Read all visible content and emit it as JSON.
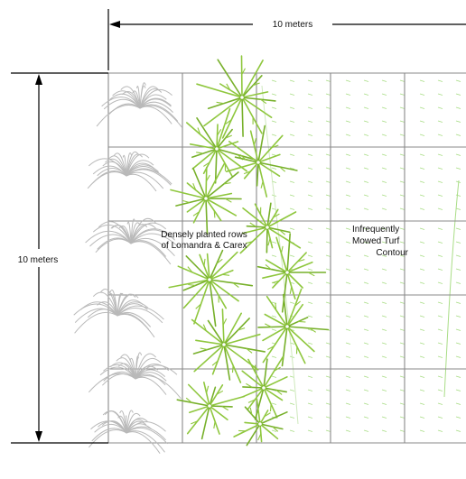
{
  "dimensions": {
    "top_label": "10 meters",
    "left_label": "10 meters"
  },
  "annotations": {
    "planted_rows": [
      "Densely planted rows",
      "of Lomandra & Carex"
    ],
    "turf": [
      "Infrequently",
      "Mowed Turf",
      "Contour"
    ]
  },
  "grid": {
    "columns": 5,
    "rows": 5
  },
  "colors": {
    "grid_line": "#8a8a8a",
    "grey_grass": "#b9b9b9",
    "green_grass": "#8fc73e",
    "green_grass_dark": "#77b02a",
    "turf_dash": "#a9dd86",
    "dimension_line": "#000000"
  }
}
